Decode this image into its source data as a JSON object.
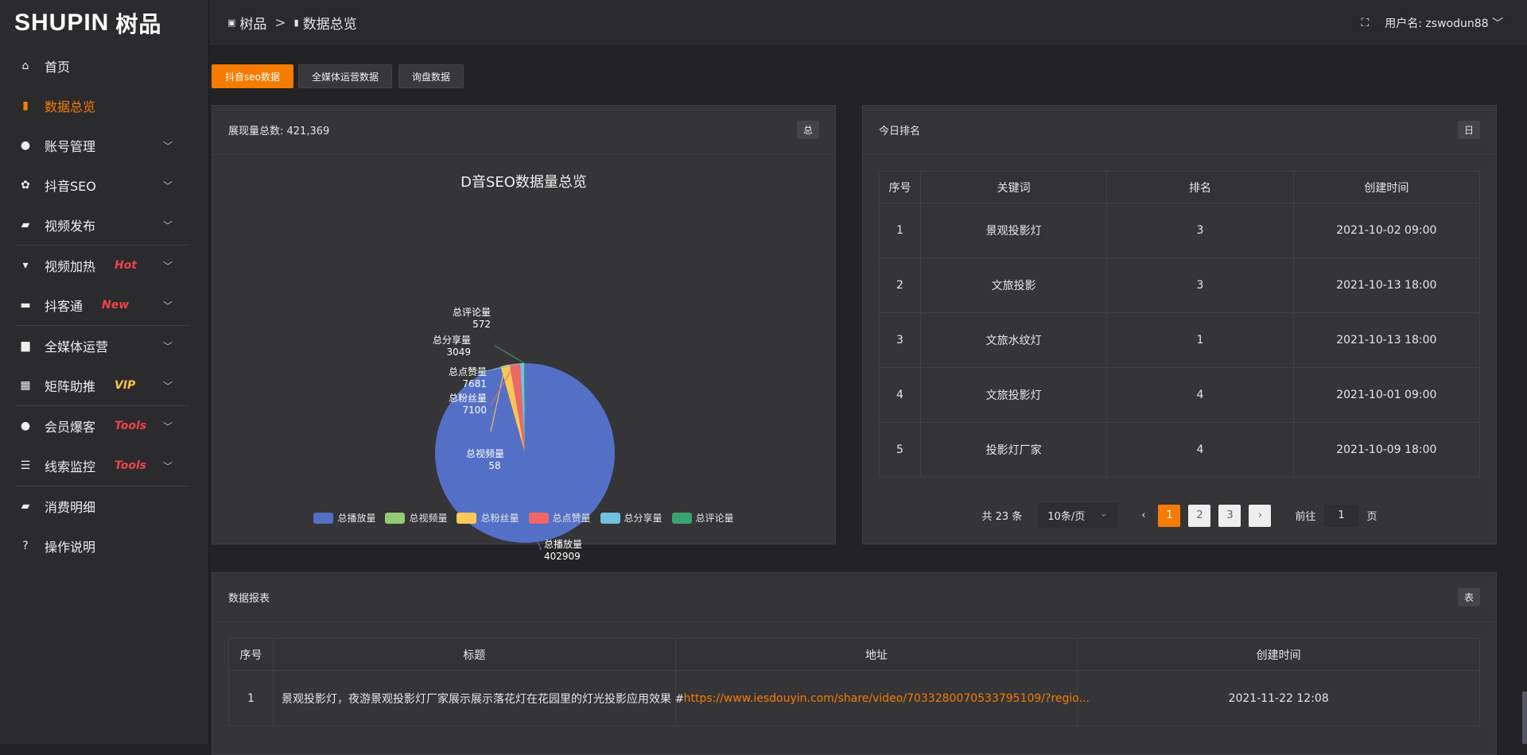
{
  "brand": {
    "logo": "SHUPIN",
    "logo_cn": "树品"
  },
  "sidebar": {
    "items": [
      {
        "label": "首页",
        "icon": "home-icon",
        "glyph": "⌂"
      },
      {
        "label": "数据总览",
        "icon": "bar-chart-icon",
        "glyph": "▮",
        "active": true
      },
      {
        "label": "账号管理",
        "icon": "user-icon",
        "glyph": "●",
        "chev": true
      },
      {
        "label": "抖音SEO",
        "icon": "gear-icon",
        "glyph": "✿",
        "chev": true
      },
      {
        "label": "视频发布",
        "icon": "camera-icon",
        "glyph": "▰",
        "chev": true
      },
      {
        "divider": true
      },
      {
        "label": "视频加热",
        "icon": "monitor-icon",
        "glyph": "▾",
        "chev": true,
        "badge": "Hot",
        "badge_color": "#f0424a"
      },
      {
        "label": "抖客通",
        "icon": "chat-icon",
        "glyph": "▬",
        "chev": true,
        "badge": "New",
        "badge_color": "#f0424a"
      },
      {
        "divider": true
      },
      {
        "label": "全媒体运营",
        "icon": "desktop-icon",
        "glyph": "▆",
        "chev": true
      },
      {
        "label": "矩阵助推",
        "icon": "grid-icon",
        "glyph": "▦",
        "chev": true,
        "badge": "VIP",
        "badge_color": "#f5c24a"
      },
      {
        "divider": true
      },
      {
        "label": "会员爆客",
        "icon": "member-icon",
        "glyph": "●",
        "chev": true,
        "badge": "Tools",
        "badge_color": "#f0424a"
      },
      {
        "label": "线索监控",
        "icon": "sliders-icon",
        "glyph": "☰",
        "chev": true,
        "badge": "Tools",
        "badge_color": "#f0424a"
      },
      {
        "divider": true
      },
      {
        "label": "消费明细",
        "icon": "wallet-icon",
        "glyph": "▰"
      },
      {
        "label": "操作说明",
        "icon": "help-icon",
        "glyph": "?"
      }
    ]
  },
  "header": {
    "crumb1": "树品",
    "crumb_sep": ">",
    "crumb2": "数据总览",
    "user_label": "用户名: zswodun88",
    "chevron": "﹀"
  },
  "tabs": [
    "抖音seo数据",
    "全媒体运营数据",
    "询盘数据"
  ],
  "pie_card": {
    "title": "展现量总数: 421,369",
    "tag": "总"
  },
  "chart_data": {
    "type": "pie",
    "title": "D音SEO数据量总览",
    "legend_position": "bottom",
    "slices": [
      {
        "name": "总播放量",
        "value": 402909,
        "color": "#5470c6"
      },
      {
        "name": "总视频量",
        "value": 58,
        "color": "#91cc75"
      },
      {
        "name": "总粉丝量",
        "value": 7100,
        "color": "#fac858"
      },
      {
        "name": "总点赞量",
        "value": 7681,
        "color": "#ee6666"
      },
      {
        "name": "总分享量",
        "value": 3049,
        "color": "#73c0de"
      },
      {
        "name": "总评论量",
        "value": 572,
        "color": "#3ba272"
      }
    ]
  },
  "rank_card": {
    "title": "今日排名",
    "tag": "日",
    "columns": [
      "序号",
      "关键词",
      "排名",
      "创建时间"
    ],
    "rows": [
      [
        "1",
        "景观投影灯",
        "3",
        "2021-10-02 09:00"
      ],
      [
        "2",
        "文旅投影",
        "3",
        "2021-10-13 18:00"
      ],
      [
        "3",
        "文旅水纹灯",
        "1",
        "2021-10-13 18:00"
      ],
      [
        "4",
        "文旅投影灯",
        "4",
        "2021-10-01 09:00"
      ],
      [
        "5",
        "投影灯厂家",
        "4",
        "2021-10-09 18:00"
      ]
    ],
    "pagination": {
      "total": "共 23 条",
      "page_size": "10条/页",
      "pages": [
        "1",
        "2",
        "3"
      ],
      "current": "1",
      "goto_label": "前往",
      "goto_value": "1",
      "page_unit": "页"
    }
  },
  "report_card": {
    "title": "数据报表",
    "tag": "表",
    "columns": [
      "序号",
      "标题",
      "地址",
      "创建时间"
    ],
    "rows": [
      [
        "1",
        "景观投影灯，夜游景观投影灯厂家展示展示落花灯在花园里的灯光投影应用效果 #",
        "https://www.iesdouyin.com/share/video/7033280070533795109/?regio...",
        "2021-11-22 12:08"
      ]
    ]
  }
}
